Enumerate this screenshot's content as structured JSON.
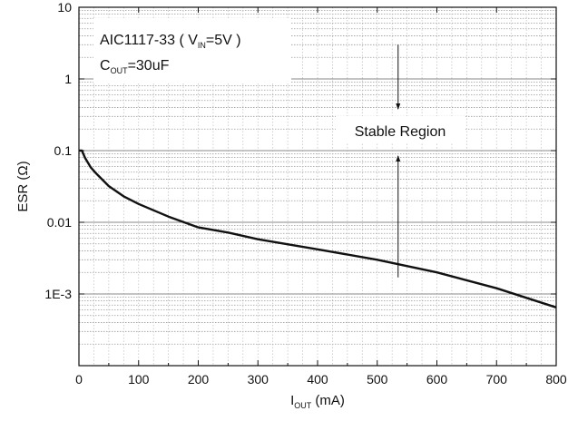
{
  "chart_data": {
    "type": "line",
    "title": "",
    "xscale": "linear",
    "yscale": "log",
    "xlim": [
      0,
      800
    ],
    "ylim": [
      0.0001,
      10
    ],
    "x_ticks": [
      0,
      100,
      200,
      300,
      400,
      500,
      600,
      700,
      800
    ],
    "x_tick_labels": [
      "0",
      "100",
      "200",
      "300",
      "400",
      "500",
      "600",
      "700",
      "800"
    ],
    "y_ticks": [
      10,
      1,
      0.1,
      0.01,
      0.001
    ],
    "y_tick_labels": [
      "10",
      "1",
      "0.1",
      "0.01",
      "1E-3"
    ],
    "xlabel": {
      "main": "I",
      "sub": "OUT",
      "rest": " (mA)"
    },
    "ylabel": "ESR (Ω)",
    "grid": true,
    "shaded_bands": "horizontal bands of dense dotted minor grid within each decade",
    "series": [
      {
        "name": "",
        "color": "#111111",
        "x": [
          0,
          5,
          10,
          20,
          30,
          50,
          75,
          100,
          150,
          200,
          250,
          300,
          400,
          500,
          600,
          700,
          800
        ],
        "y": [
          0.1,
          0.1,
          0.08,
          0.058,
          0.047,
          0.032,
          0.023,
          0.018,
          0.012,
          0.0085,
          0.0072,
          0.0058,
          0.0042,
          0.003,
          0.002,
          0.0012,
          0.00065
        ]
      }
    ],
    "annotations": {
      "device_line": {
        "part": "AIC1117-33",
        "open": "( V",
        "sub": "IN",
        "close": "=5V )"
      },
      "cap_line": {
        "main": "C",
        "sub": "OUT",
        "rest": "=30uF"
      },
      "region_label": "Stable Region",
      "arrow_x": 535,
      "arrow_top_y": 3,
      "arrow_bottom_y": 0.0017
    }
  }
}
